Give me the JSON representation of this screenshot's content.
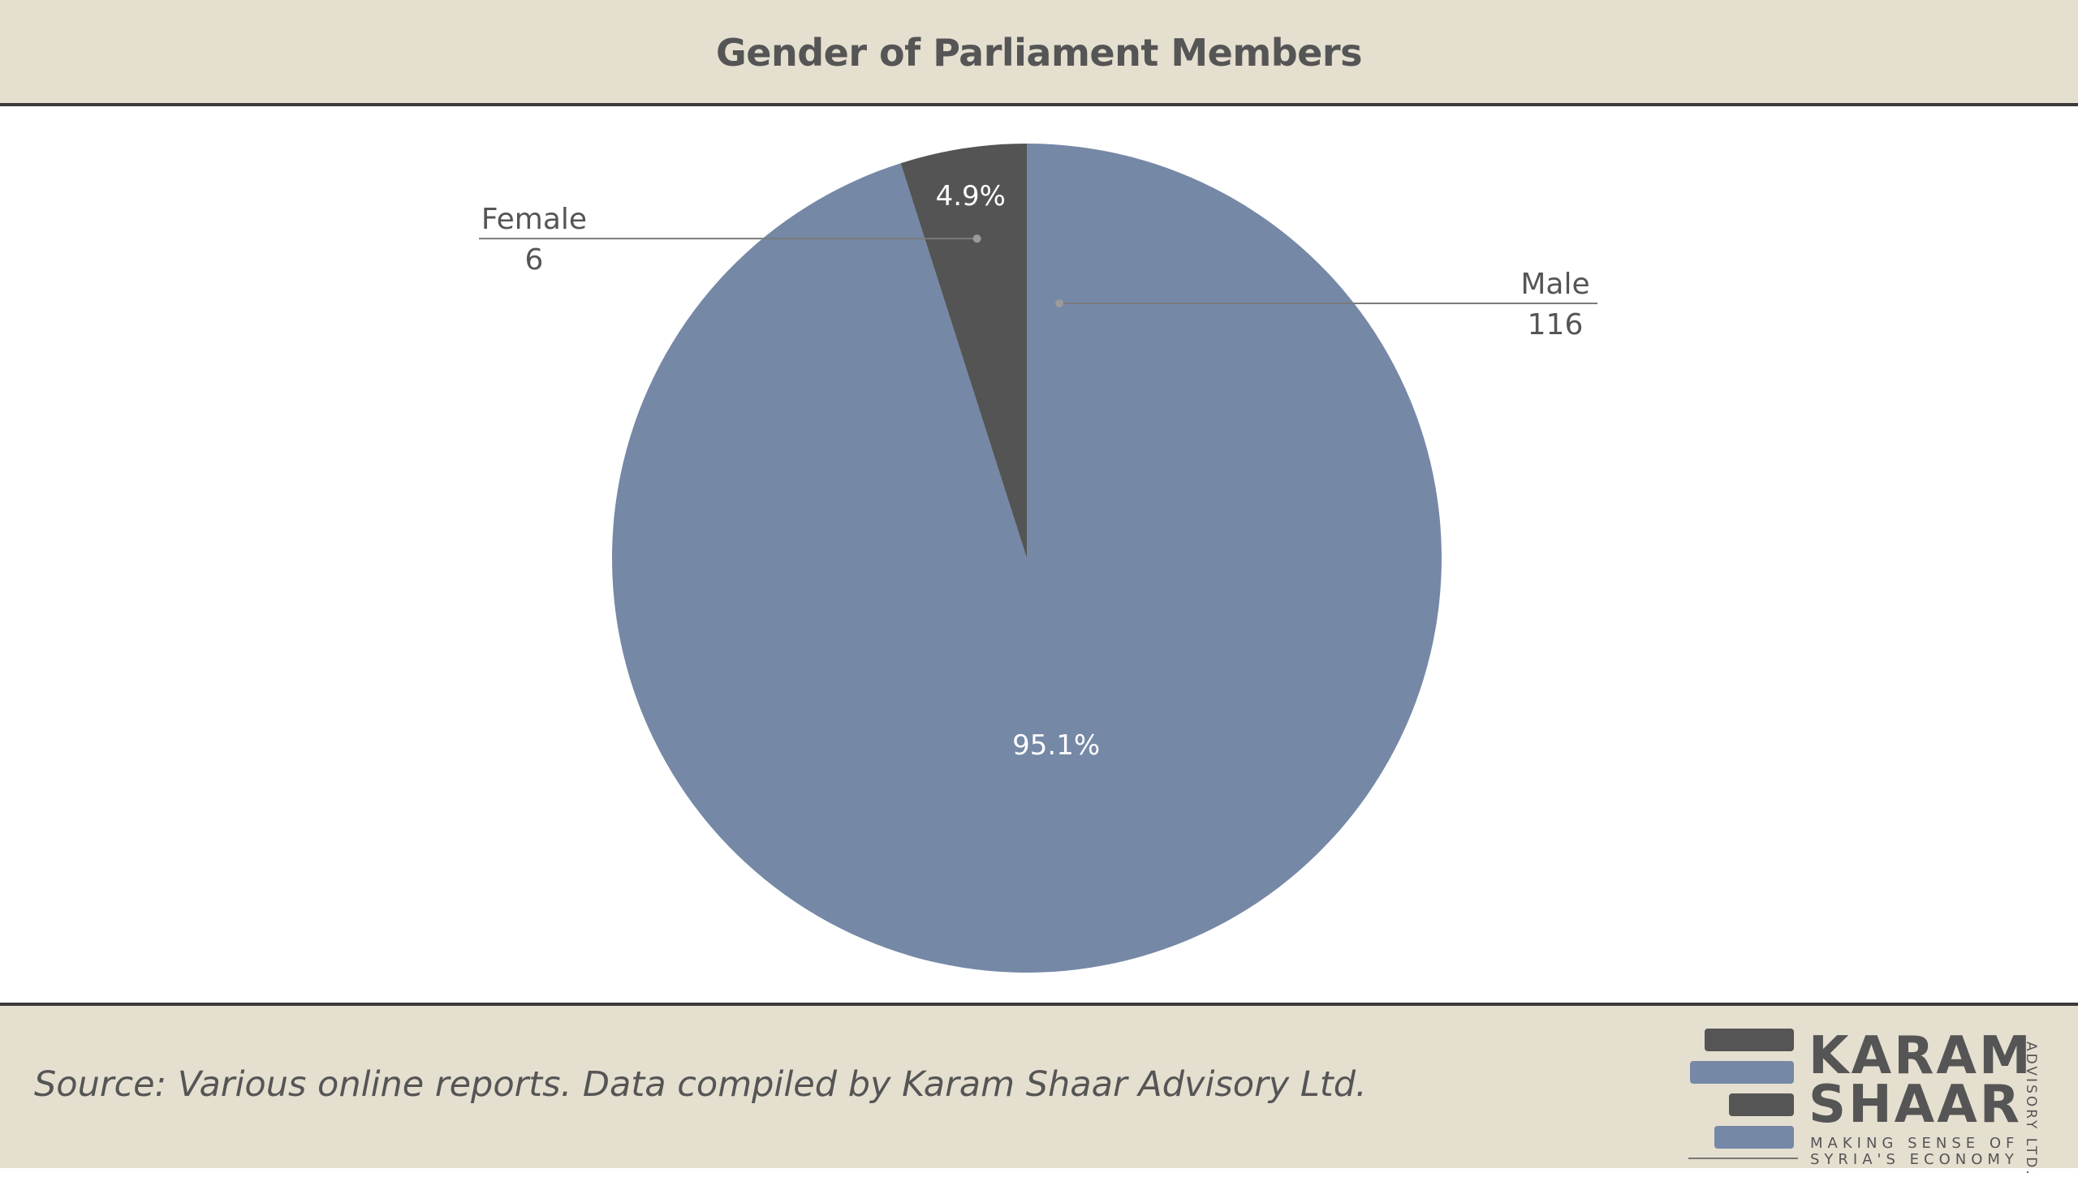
{
  "chart_data": {
    "type": "pie",
    "title": "Gender of Parliament Members",
    "slices": [
      {
        "label": "Male",
        "value": 116,
        "percent_label": "95.1%",
        "color": "#7588a6"
      },
      {
        "label": "Female",
        "value": 6,
        "percent_label": "4.9%",
        "color": "#545454"
      }
    ],
    "start_angle_deg": 0,
    "direction": "clockwise",
    "legend": "none",
    "label_style": "callout lines with category and value"
  },
  "footer": {
    "source": "Source: Various online reports. Data compiled by Karam Shaar Advisory Ltd."
  },
  "logo": {
    "line1": "KARAM",
    "line2": "SHAAR",
    "tagline1": "MAKING SENSE OF",
    "tagline2": "SYRIA'S ECONOMY",
    "vertical": "ADVISORY LTD.",
    "bar_colors": [
      "#555555",
      "#7588a6",
      "#555555",
      "#7588a6"
    ]
  },
  "colors": {
    "band_background": "#e5dfd0",
    "text": "#555555",
    "callout_line": "#7a7a7a"
  }
}
